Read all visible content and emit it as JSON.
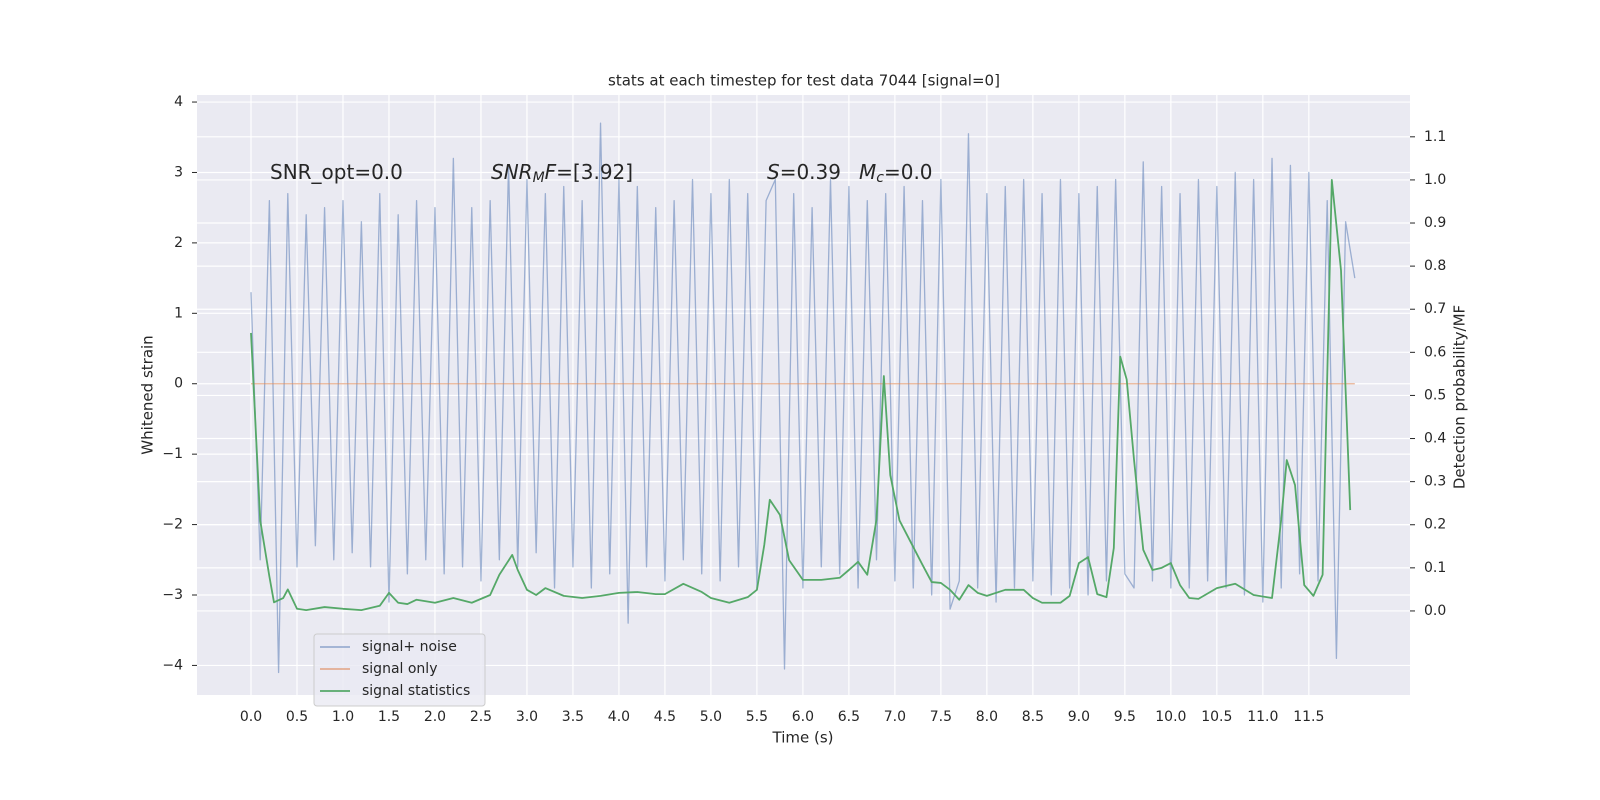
{
  "chart_data": {
    "type": "line",
    "title": "stats at each timestep for test data 7044 [signal=0]",
    "xlabel": "Time (s)",
    "ylabel": "Whitened strain",
    "y2label": "Detection probability/MF",
    "xlim": [
      -0.587,
      12.6
    ],
    "ylim": [
      -4.42,
      4.1
    ],
    "y2lim": [
      -0.195,
      1.197
    ],
    "xticks": [
      {
        "value": 0,
        "label": "0.0"
      },
      0.5,
      {
        "value": 1,
        "label": "1.0"
      },
      1.5,
      {
        "value": 2,
        "label": "2.0"
      },
      2.5,
      {
        "value": 3,
        "label": "3.0"
      },
      3.5,
      {
        "value": 4,
        "label": "4.0"
      },
      4.5,
      {
        "value": 5,
        "label": "5.0"
      },
      5.5,
      {
        "value": 6,
        "label": "6.0"
      },
      6.5,
      {
        "value": 7,
        "label": "7.0"
      },
      7.5,
      {
        "value": 8,
        "label": "8.0"
      },
      8.5,
      {
        "value": 9,
        "label": "9.0"
      },
      9.5,
      {
        "value": 10,
        "label": "10.0"
      },
      10.5,
      {
        "value": 11,
        "label": "11.0"
      },
      11.5
    ],
    "yticks": [
      {
        "value": -4,
        "label": "−4"
      },
      {
        "value": -3,
        "label": "−3"
      },
      {
        "value": -2,
        "label": "−2"
      },
      {
        "value": -1,
        "label": "−1"
      },
      0,
      1,
      2,
      3,
      4
    ],
    "y2ticks": [
      {
        "value": 0,
        "label": "0.0"
      },
      0.1,
      0.2,
      0.3,
      0.4,
      0.5,
      0.6,
      0.7,
      0.8,
      0.9,
      {
        "value": 1,
        "label": "1.0"
      },
      1.1
    ],
    "grid": true,
    "legend": "lower left",
    "annotations": [
      {
        "parts": [
          {
            "text": "SNR_opt=0.0",
            "style": "normal"
          }
        ]
      },
      {
        "parts": [
          {
            "text": "SNR",
            "style": "italic"
          },
          {
            "text": "M",
            "style": "italic-sub"
          },
          {
            "text": "F",
            "style": "italic"
          },
          {
            "text": "=[3.92]",
            "style": "normal"
          }
        ]
      },
      {
        "parts": [
          {
            "text": "S",
            "style": "italic"
          },
          {
            "text": "=0.39",
            "style": "normal"
          }
        ]
      },
      {
        "parts": [
          {
            "text": "M",
            "style": "italic"
          },
          {
            "text": "c",
            "style": "italic-sub"
          },
          {
            "text": "=0.0",
            "style": "normal"
          }
        ]
      }
    ],
    "series": [
      {
        "name": "signal+ noise",
        "color": "#4c72b0",
        "opacity": 0.5,
        "x": [
          0.0,
          0.1,
          0.2,
          0.3,
          0.4,
          0.5,
          0.6,
          0.7,
          0.8,
          0.9,
          1.0,
          1.1,
          1.2,
          1.3,
          1.4,
          1.5,
          1.6,
          1.7,
          1.8,
          1.9,
          2.0,
          2.1,
          2.2,
          2.3,
          2.4,
          2.5,
          2.6,
          2.7,
          2.8,
          2.9,
          3.0,
          3.1,
          3.2,
          3.3,
          3.4,
          3.5,
          3.6,
          3.7,
          3.8,
          3.9,
          4.0,
          4.1,
          4.2,
          4.3,
          4.4,
          4.5,
          4.6,
          4.7,
          4.8,
          4.9,
          5.0,
          5.1,
          5.2,
          5.3,
          5.4,
          5.5,
          5.6,
          5.7,
          5.8,
          5.9,
          6.0,
          6.1,
          6.2,
          6.3,
          6.4,
          6.5,
          6.6,
          6.7,
          6.8,
          6.9,
          7.0,
          7.1,
          7.2,
          7.3,
          7.4,
          7.5,
          7.6,
          7.7,
          7.8,
          7.9,
          8.0,
          8.1,
          8.2,
          8.3,
          8.4,
          8.5,
          8.6,
          8.7,
          8.8,
          8.9,
          9.0,
          9.1,
          9.2,
          9.3,
          9.4,
          9.5,
          9.6,
          9.7,
          9.8,
          9.9,
          10.0,
          10.1,
          10.2,
          10.3,
          10.4,
          10.5,
          10.6,
          10.7,
          10.8,
          10.9,
          11.0,
          11.1,
          11.2,
          11.3,
          11.4,
          11.5,
          11.6,
          11.7,
          11.8,
          11.9,
          12.0
        ],
        "values": [
          1.3,
          -2.5,
          2.6,
          -4.1,
          2.7,
          -2.6,
          2.4,
          -2.3,
          2.5,
          -2.5,
          2.6,
          -2.4,
          2.3,
          -2.6,
          2.7,
          -3.1,
          2.4,
          -2.7,
          2.6,
          -2.5,
          2.5,
          -2.7,
          3.2,
          -2.6,
          2.5,
          -2.8,
          2.6,
          -2.5,
          3.1,
          -2.6,
          2.9,
          -2.4,
          2.7,
          -2.9,
          2.8,
          -2.6,
          2.6,
          -2.9,
          3.7,
          -2.7,
          2.9,
          -3.4,
          2.8,
          -2.6,
          2.5,
          -2.8,
          2.6,
          -2.5,
          2.9,
          -2.7,
          2.7,
          -2.8,
          2.9,
          -2.6,
          2.7,
          -2.9,
          2.6,
          2.9,
          -4.05,
          2.7,
          -2.9,
          2.5,
          -2.6,
          2.9,
          -2.7,
          2.8,
          -2.9,
          2.6,
          -2.5,
          2.7,
          -2.8,
          2.8,
          -2.9,
          2.6,
          -3.0,
          2.9,
          -3.2,
          -2.8,
          3.55,
          -2.9,
          2.7,
          -3.1,
          2.8,
          -2.9,
          2.9,
          -2.8,
          2.7,
          -3.0,
          2.9,
          -2.9,
          2.7,
          -3.0,
          2.8,
          -2.8,
          2.9,
          -2.7,
          -2.9,
          3.15,
          -2.8,
          2.8,
          -2.9,
          2.7,
          -2.9,
          2.9,
          -2.8,
          2.8,
          -2.9,
          3.0,
          -3.0,
          2.9,
          -3.1,
          3.2,
          -2.9,
          3.1,
          -2.7,
          3.0,
          -2.8,
          2.6,
          -3.9,
          2.3,
          1.5
        ]
      },
      {
        "name": "signal only",
        "color": "#dd8452",
        "opacity": 0.6,
        "x": [
          0.0,
          12.0
        ],
        "values": [
          0,
          0
        ]
      },
      {
        "name": "signal statistics",
        "color": "#55a868",
        "opacity": 1,
        "axis": "y2",
        "x": [
          0.0,
          0.1,
          0.2,
          0.25,
          0.35,
          0.4,
          0.5,
          0.6,
          0.8,
          1.0,
          1.2,
          1.4,
          1.5,
          1.6,
          1.7,
          1.8,
          2.0,
          2.2,
          2.4,
          2.6,
          2.7,
          2.84,
          2.9,
          3.0,
          3.1,
          3.2,
          3.4,
          3.6,
          3.8,
          4.0,
          4.2,
          4.4,
          4.5,
          4.7,
          4.9,
          5.0,
          5.2,
          5.4,
          5.5,
          5.58,
          5.64,
          5.75,
          5.85,
          6.0,
          6.2,
          6.4,
          6.5,
          6.6,
          6.7,
          6.8,
          6.88,
          6.95,
          7.05,
          7.3,
          7.4,
          7.5,
          7.6,
          7.7,
          7.8,
          7.9,
          8.0,
          8.2,
          8.4,
          8.5,
          8.6,
          8.8,
          8.9,
          9.0,
          9.1,
          9.2,
          9.3,
          9.38,
          9.45,
          9.52,
          9.6,
          9.7,
          9.8,
          9.9,
          10.0,
          10.1,
          10.2,
          10.3,
          10.5,
          10.7,
          10.9,
          11.1,
          11.2,
          11.26,
          11.35,
          11.45,
          11.55,
          11.65,
          11.75,
          11.85,
          11.95
        ],
        "values": [
          0.645,
          0.21,
          0.08,
          0.02,
          0.03,
          0.05,
          0.005,
          0.002,
          0.009,
          0.005,
          0.002,
          0.012,
          0.042,
          0.019,
          0.016,
          0.026,
          0.019,
          0.03,
          0.019,
          0.037,
          0.084,
          0.13,
          0.095,
          0.049,
          0.037,
          0.053,
          0.035,
          0.03,
          0.035,
          0.042,
          0.044,
          0.039,
          0.039,
          0.063,
          0.044,
          0.03,
          0.019,
          0.032,
          0.049,
          0.153,
          0.258,
          0.223,
          0.118,
          0.072,
          0.072,
          0.077,
          0.095,
          0.114,
          0.084,
          0.212,
          0.545,
          0.315,
          0.21,
          0.107,
          0.067,
          0.065,
          0.049,
          0.026,
          0.06,
          0.042,
          0.035,
          0.049,
          0.049,
          0.03,
          0.019,
          0.019,
          0.035,
          0.111,
          0.125,
          0.039,
          0.032,
          0.146,
          0.59,
          0.537,
          0.35,
          0.142,
          0.095,
          0.1,
          0.111,
          0.06,
          0.03,
          0.028,
          0.053,
          0.063,
          0.037,
          0.03,
          0.212,
          0.35,
          0.292,
          0.06,
          0.035,
          0.084,
          1.0,
          0.79,
          0.234
        ]
      }
    ]
  }
}
